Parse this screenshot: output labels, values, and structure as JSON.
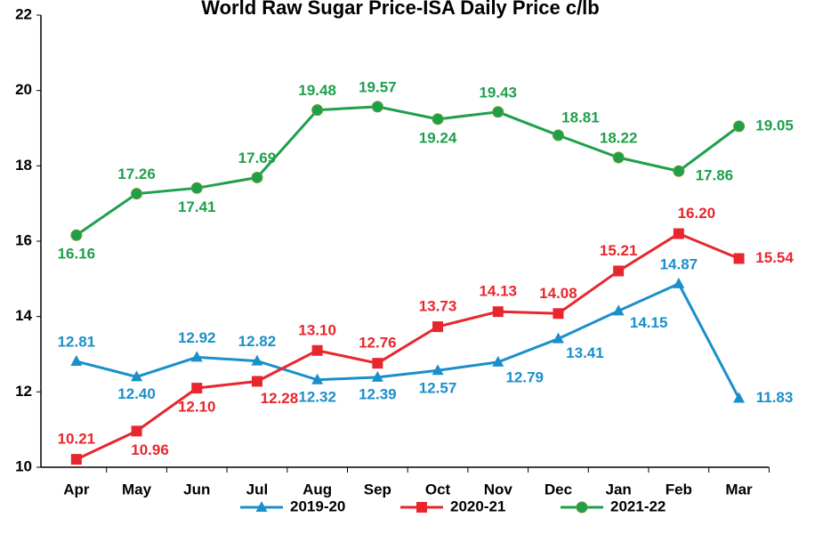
{
  "chart_data": {
    "type": "line",
    "title": "World  Raw Sugar Price-ISA Daily Price c/lb",
    "categories": [
      "Apr",
      "May",
      "Jun",
      "Jul",
      "Aug",
      "Sep",
      "Oct",
      "Nov",
      "Dec",
      "Jan",
      "Feb",
      "Mar"
    ],
    "series": [
      {
        "name": "2019-20",
        "color": "#1a8fca",
        "marker": "triangle",
        "values": [
          12.81,
          12.4,
          12.92,
          12.82,
          12.32,
          12.39,
          12.57,
          12.79,
          13.41,
          14.15,
          14.87,
          11.83
        ],
        "value_labels": [
          "12.81",
          "12.40",
          "12.92",
          "12.82",
          "12.32",
          "12.39",
          "12.57",
          "12.79",
          "13.41",
          "14.15",
          "14.87",
          "11.83"
        ]
      },
      {
        "name": "2020-21",
        "color": "#e8262d",
        "marker": "square",
        "values": [
          10.21,
          10.96,
          12.1,
          12.28,
          13.1,
          12.76,
          13.73,
          14.13,
          14.08,
          15.21,
          16.2,
          15.54
        ],
        "value_labels": [
          "10.21",
          "10.96",
          "12.10",
          "12.28",
          "13.10",
          "12.76",
          "13.73",
          "14.13",
          "14.08",
          "15.21",
          "16.20",
          "15.54"
        ]
      },
      {
        "name": "2021-22",
        "color": "#1ea04b",
        "marker": "circle",
        "values": [
          16.16,
          17.26,
          17.41,
          17.69,
          19.48,
          19.57,
          19.24,
          19.43,
          18.81,
          18.22,
          17.86,
          19.05
        ],
        "value_labels": [
          "16.16",
          "17.26",
          "17.41",
          "17.69",
          "19.48",
          "19.57",
          "19.24",
          "19.43",
          "18.81",
          "18.22",
          "17.86",
          "19.05"
        ]
      }
    ],
    "ylim": [
      10,
      22
    ],
    "yticks": [
      10,
      12,
      14,
      16,
      18,
      20,
      22
    ],
    "legend": "bottom"
  }
}
